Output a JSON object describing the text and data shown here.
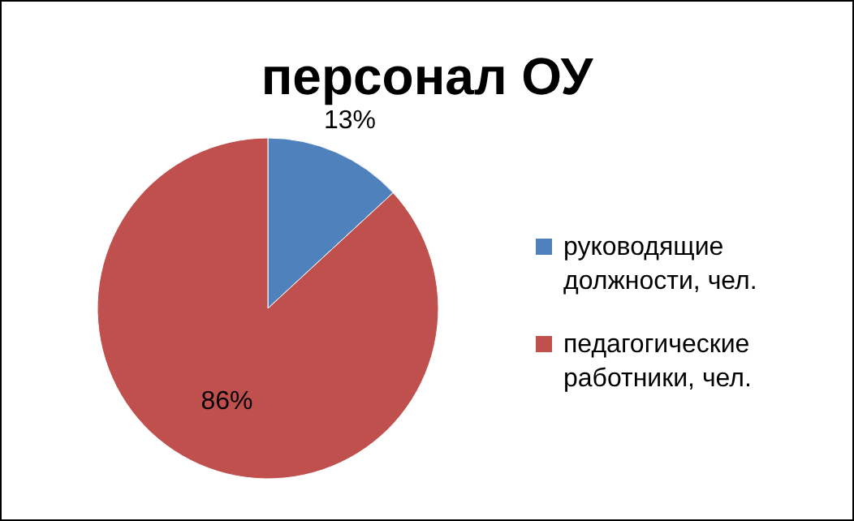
{
  "chart_data": {
    "type": "pie",
    "title": "персонал ОУ",
    "categories": [
      "руководящие должности, чел.",
      "педагогические работники, чел."
    ],
    "values": [
      13,
      86
    ],
    "colors": [
      "#4f81bd",
      "#c0504d"
    ],
    "value_labels": [
      "13%",
      "86%"
    ],
    "legend": "right"
  }
}
